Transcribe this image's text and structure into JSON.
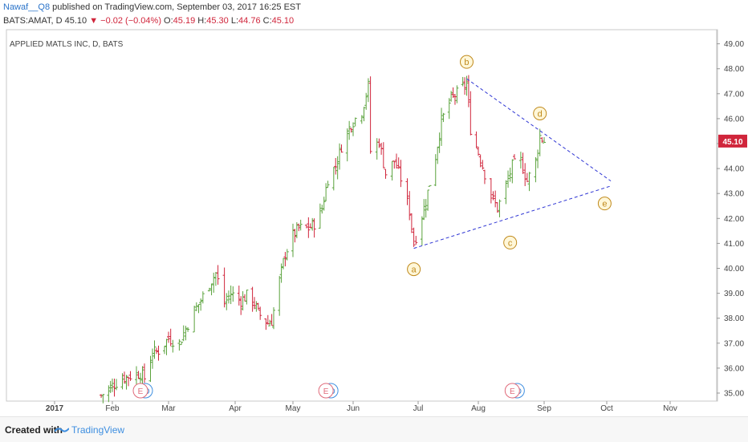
{
  "header": {
    "author": "Nawaf__Q8",
    "published": " published on TradingView.com, September 03, 2017 16:25 EST",
    "symbol_line_prefix": "BATS:AMAT, D  45.10",
    "change": "▼ −0.02 (−0.04%)",
    "o_label": " O:",
    "o_val": "45.19",
    "h_label": " H:",
    "h_val": "45.30",
    "l_label": " L:",
    "l_val": "44.76",
    "c_label": " C:",
    "c_val": "45.10"
  },
  "footer": {
    "created": "Created with",
    "brand": "TradingView"
  },
  "colors": {
    "up": "#5aa23c",
    "down": "#d0253b",
    "wave": "#c08a1d",
    "trend": "#2f36d4",
    "price_tag": "#d0253b"
  },
  "chart_data": {
    "type": "ohlc",
    "title": "APPLIED MATLS INC, D, BATS",
    "y_ticks": [
      "35.00",
      "36.00",
      "37.00",
      "38.00",
      "39.00",
      "40.00",
      "41.00",
      "42.00",
      "43.00",
      "44.00",
      "45.00",
      "46.00",
      "47.00",
      "48.00",
      "49.00"
    ],
    "ylim": [
      34.8,
      49.2
    ],
    "x_ticks": [
      "2017",
      "Feb",
      "Mar",
      "Apr",
      "May",
      "Jun",
      "Jul",
      "Aug",
      "Sep",
      "Oct",
      "Nov"
    ],
    "last_price": "45.10",
    "close_series": [
      {
        "date": "2017-01-26",
        "close": 34.9
      },
      {
        "date": "2017-02-01",
        "close": 35.3
      },
      {
        "date": "2017-02-06",
        "close": 35.6
      },
      {
        "date": "2017-02-10",
        "close": 35.7
      },
      {
        "date": "2017-02-15",
        "close": 35.8
      },
      {
        "date": "2017-02-17",
        "close": 35.6
      },
      {
        "date": "2017-02-21",
        "close": 36.6
      },
      {
        "date": "2017-02-24",
        "close": 36.7
      },
      {
        "date": "2017-03-01",
        "close": 37.2
      },
      {
        "date": "2017-03-06",
        "close": 37.0
      },
      {
        "date": "2017-03-09",
        "close": 37.6
      },
      {
        "date": "2017-03-13",
        "close": 38.3
      },
      {
        "date": "2017-03-16",
        "close": 38.7
      },
      {
        "date": "2017-03-20",
        "close": 39.4
      },
      {
        "date": "2017-03-23",
        "close": 39.8
      },
      {
        "date": "2017-03-27",
        "close": 38.6
      },
      {
        "date": "2017-03-30",
        "close": 39.0
      },
      {
        "date": "2017-04-04",
        "close": 38.7
      },
      {
        "date": "2017-04-07",
        "close": 38.9
      },
      {
        "date": "2017-04-11",
        "close": 38.6
      },
      {
        "date": "2017-04-13",
        "close": 38.2
      },
      {
        "date": "2017-04-18",
        "close": 37.8
      },
      {
        "date": "2017-04-20",
        "close": 37.9
      },
      {
        "date": "2017-04-24",
        "close": 39.5
      },
      {
        "date": "2017-04-27",
        "close": 40.6
      },
      {
        "date": "2017-05-01",
        "close": 41.3
      },
      {
        "date": "2017-05-04",
        "close": 41.6
      },
      {
        "date": "2017-05-09",
        "close": 41.6
      },
      {
        "date": "2017-05-12",
        "close": 41.8
      },
      {
        "date": "2017-05-16",
        "close": 42.4
      },
      {
        "date": "2017-05-19",
        "close": 43.6
      },
      {
        "date": "2017-05-23",
        "close": 44.1
      },
      {
        "date": "2017-05-26",
        "close": 44.9
      },
      {
        "date": "2017-05-31",
        "close": 45.8
      },
      {
        "date": "2017-06-05",
        "close": 46.3
      },
      {
        "date": "2017-06-08",
        "close": 47.3
      },
      {
        "date": "2017-06-09",
        "close": 44.7
      },
      {
        "date": "2017-06-13",
        "close": 45.1
      },
      {
        "date": "2017-06-16",
        "close": 43.8
      },
      {
        "date": "2017-06-20",
        "close": 44.3
      },
      {
        "date": "2017-06-23",
        "close": 43.6
      },
      {
        "date": "2017-06-27",
        "close": 42.3
      },
      {
        "date": "2017-06-29",
        "close": 41.0
      },
      {
        "date": "2017-07-05",
        "close": 42.7
      },
      {
        "date": "2017-07-10",
        "close": 44.5
      },
      {
        "date": "2017-07-13",
        "close": 45.9
      },
      {
        "date": "2017-07-18",
        "close": 46.8
      },
      {
        "date": "2017-07-21",
        "close": 47.0
      },
      {
        "date": "2017-07-26",
        "close": 47.4
      },
      {
        "date": "2017-07-28",
        "close": 45.6
      },
      {
        "date": "2017-08-02",
        "close": 44.4
      },
      {
        "date": "2017-08-07",
        "close": 42.9
      },
      {
        "date": "2017-08-10",
        "close": 42.4
      },
      {
        "date": "2017-08-14",
        "close": 43.3
      },
      {
        "date": "2017-08-17",
        "close": 44.1
      },
      {
        "date": "2017-08-21",
        "close": 44.3
      },
      {
        "date": "2017-08-24",
        "close": 43.5
      },
      {
        "date": "2017-08-28",
        "close": 44.3
      },
      {
        "date": "2017-08-30",
        "close": 45.3
      },
      {
        "date": "2017-09-01",
        "close": 45.1
      }
    ],
    "wave_labels": [
      {
        "label": "a",
        "date": "2017-06-29",
        "value": 40.8
      },
      {
        "label": "b",
        "date": "2017-07-26",
        "value": 47.6
      },
      {
        "label": "c",
        "date": "2017-08-16",
        "value": 41.9
      },
      {
        "label": "d",
        "date": "2017-08-30",
        "value": 45.5
      },
      {
        "label": "e",
        "date": "2017-09-30",
        "value": 42.6
      }
    ],
    "trendlines": [
      {
        "from": {
          "date": "2017-06-29",
          "value": 40.8
        },
        "to": {
          "date": "2017-10-03",
          "value": 43.3
        }
      },
      {
        "from": {
          "date": "2017-07-26",
          "value": 47.6
        },
        "to": {
          "date": "2017-10-03",
          "value": 43.5
        }
      }
    ],
    "earnings_markers": [
      "2017-02-15",
      "2017-05-18",
      "2017-08-17"
    ]
  }
}
